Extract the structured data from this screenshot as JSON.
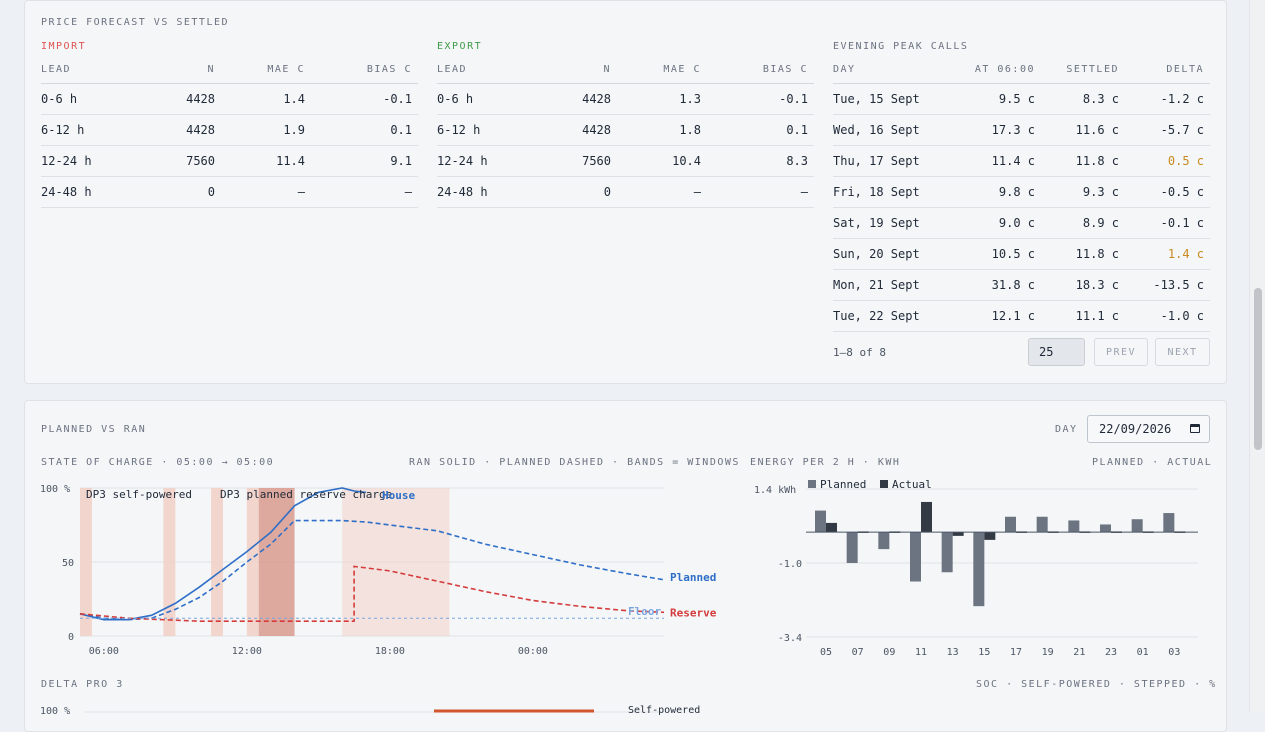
{
  "price_forecast": {
    "title": "PRICE FORECAST VS SETTLED",
    "import": {
      "caption": "IMPORT",
      "color": "#e05252",
      "columns": [
        "LEAD",
        "N",
        "MAE C",
        "BIAS C"
      ],
      "rows": [
        {
          "lead": "0-6 h",
          "n": "4428",
          "mae": "1.4",
          "bias": "-0.1"
        },
        {
          "lead": "6-12 h",
          "n": "4428",
          "mae": "1.9",
          "bias": "0.1"
        },
        {
          "lead": "12-24 h",
          "n": "7560",
          "mae": "11.4",
          "bias": "9.1"
        },
        {
          "lead": "24-48 h",
          "n": "0",
          "mae": "–",
          "bias": "–"
        }
      ]
    },
    "export": {
      "caption": "EXPORT",
      "color": "#3f9b48",
      "columns": [
        "LEAD",
        "N",
        "MAE C",
        "BIAS C"
      ],
      "rows": [
        {
          "lead": "0-6 h",
          "n": "4428",
          "mae": "1.3",
          "bias": "-0.1"
        },
        {
          "lead": "6-12 h",
          "n": "4428",
          "mae": "1.8",
          "bias": "0.1"
        },
        {
          "lead": "12-24 h",
          "n": "7560",
          "mae": "10.4",
          "bias": "8.3"
        },
        {
          "lead": "24-48 h",
          "n": "0",
          "mae": "–",
          "bias": "–"
        }
      ]
    },
    "peak_calls": {
      "caption": "EVENING PEAK CALLS",
      "columns": [
        "DAY",
        "AT 06:00",
        "SETTLED",
        "DELTA"
      ],
      "rows": [
        {
          "day": "Tue, 15 Sept",
          "at": "9.5 c",
          "settled": "8.3 c",
          "delta": "-1.2 c",
          "highlight": false
        },
        {
          "day": "Wed, 16 Sept",
          "at": "17.3 c",
          "settled": "11.6 c",
          "delta": "-5.7 c",
          "highlight": false
        },
        {
          "day": "Thu, 17 Sept",
          "at": "11.4 c",
          "settled": "11.8 c",
          "delta": "0.5 c",
          "highlight": true
        },
        {
          "day": "Fri, 18 Sept",
          "at": "9.8 c",
          "settled": "9.3 c",
          "delta": "-0.5 c",
          "highlight": false
        },
        {
          "day": "Sat, 19 Sept",
          "at": "9.0 c",
          "settled": "8.9 c",
          "delta": "-0.1 c",
          "highlight": false
        },
        {
          "day": "Sun, 20 Sept",
          "at": "10.5 c",
          "settled": "11.8 c",
          "delta": "1.4 c",
          "highlight": true
        },
        {
          "day": "Mon, 21 Sept",
          "at": "31.8 c",
          "settled": "18.3 c",
          "delta": "-13.5 c",
          "highlight": false
        },
        {
          "day": "Tue, 22 Sept",
          "at": "12.1 c",
          "settled": "11.1 c",
          "delta": "-1.0 c",
          "highlight": false
        }
      ],
      "highlight_color": "#c98a1f",
      "pager": {
        "summary": "1–8 of 8",
        "page_size": "25",
        "prev": "PREV",
        "next": "NEXT"
      }
    }
  },
  "planned_vs_ran": {
    "title": "PLANNED VS RAN",
    "day_label": "DAY",
    "date_value": "22/09/2026",
    "soc_chart": {
      "title": "STATE OF CHARGE · 05:00 → 05:00",
      "legend_note": "RAN SOLID · PLANNED DASHED · BANDS = WINDOWS",
      "y_ticks": [
        "100 %",
        "50",
        "0"
      ],
      "x_ticks": [
        "06:00",
        "12:00",
        "18:00",
        "00:00"
      ],
      "band_labels": [
        "DP3 self-powered",
        "DP3 planned reserve charge"
      ],
      "line_labels": {
        "house": "House",
        "planned": "Planned",
        "floor": "Floor",
        "reserve": "Reserve"
      },
      "colors": {
        "ran": "#2f6fc7",
        "planned": "#2f6fc7",
        "reserve": "#d43c3c",
        "floor": "#7aa6e0",
        "band_light": "#f2d2c6",
        "band_dark": "#d89a8e"
      }
    },
    "energy_chart": {
      "title": "ENERGY PER 2 H · KWH",
      "legend_note": "PLANNED · ACTUAL",
      "legend": [
        "Planned",
        "Actual"
      ],
      "y_ticks": [
        "1.4 kWh",
        "-1.0",
        "-3.4"
      ],
      "colors": {
        "planned": "#6b7480",
        "actual": "#333a44"
      }
    },
    "delta_pro": {
      "title": "DELTA PRO 3",
      "legend_note": "SOC · SELF-POWERED · STEPPED · %",
      "y_tick": "100 %",
      "label": "Self-powered"
    }
  },
  "chart_data": [
    {
      "type": "line",
      "title": "STATE OF CHARGE · 05:00 → 05:00",
      "x_ticks": [
        "06:00",
        "12:00",
        "18:00",
        "00:00"
      ],
      "ylim": [
        0,
        100
      ],
      "bands_hours": [
        [
          5.0,
          5.5
        ],
        [
          8.5,
          9.0
        ],
        [
          10.5,
          11.0
        ],
        [
          12.0,
          12.5
        ],
        [
          12.5,
          14.0
        ],
        [
          16.0,
          20.5
        ]
      ],
      "series": [
        {
          "name": "House",
          "style": "solid",
          "points": [
            [
              5.0,
              15
            ],
            [
              6.0,
              11
            ],
            [
              7.0,
              11
            ],
            [
              8.0,
              14
            ],
            [
              9.0,
              22
            ],
            [
              10.0,
              33
            ],
            [
              11.0,
              45
            ],
            [
              12.0,
              57
            ],
            [
              13.0,
              70
            ],
            [
              14.0,
              88
            ],
            [
              15.0,
              97
            ],
            [
              16.0,
              100
            ],
            [
              16.5,
              98
            ],
            [
              17.0,
              97
            ]
          ]
        },
        {
          "name": "Planned",
          "style": "dashed",
          "points": [
            [
              5.0,
              15
            ],
            [
              6.0,
              12
            ],
            [
              7.0,
              11
            ],
            [
              8.0,
              12
            ],
            [
              9.0,
              18
            ],
            [
              10.0,
              26
            ],
            [
              11.0,
              37
            ],
            [
              12.0,
              50
            ],
            [
              13.0,
              62
            ],
            [
              14.0,
              78
            ],
            [
              15.0,
              78
            ],
            [
              16.0,
              78
            ],
            [
              17.0,
              77
            ],
            [
              18.0,
              75
            ],
            [
              20.0,
              71
            ],
            [
              22.0,
              62
            ],
            [
              24.0,
              55
            ],
            [
              26.0,
              48
            ],
            [
              28.0,
              42
            ],
            [
              29.5,
              38
            ]
          ]
        },
        {
          "name": "Reserve",
          "style": "dashed",
          "points": [
            [
              5.0,
              15
            ],
            [
              7.0,
              12
            ],
            [
              10.0,
              10
            ],
            [
              16.5,
              10
            ],
            [
              16.5,
              47
            ],
            [
              18.0,
              44
            ],
            [
              20.0,
              37
            ],
            [
              22.0,
              30
            ],
            [
              24.0,
              24
            ],
            [
              26.0,
              20
            ],
            [
              28.0,
              17
            ],
            [
              29.5,
              16
            ]
          ]
        },
        {
          "name": "Floor",
          "style": "dashed",
          "points": [
            [
              5.0,
              12
            ],
            [
              29.5,
              12
            ]
          ]
        }
      ]
    },
    {
      "type": "bar",
      "title": "ENERGY PER 2 H · KWH",
      "categories": [
        "05",
        "07",
        "09",
        "11",
        "13",
        "15",
        "17",
        "19",
        "21",
        "23",
        "01",
        "03"
      ],
      "ylim": [
        -3.4,
        1.4
      ],
      "series": [
        {
          "name": "Planned",
          "values": [
            0.7,
            -1.0,
            -0.55,
            -1.6,
            -1.3,
            -2.4,
            0.5,
            0.5,
            0.38,
            0.25,
            0.42,
            0.62
          ]
        },
        {
          "name": "Actual",
          "values": [
            0.3,
            0.0,
            0.0,
            0.98,
            -0.12,
            -0.25,
            0.0,
            0.0,
            0.0,
            0.0,
            0.0,
            0.0
          ]
        }
      ]
    }
  ]
}
